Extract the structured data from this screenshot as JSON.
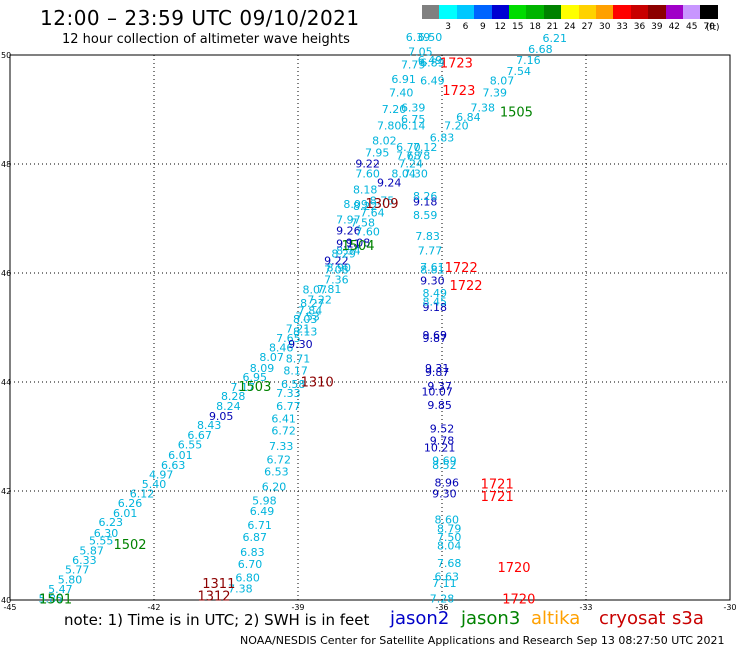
{
  "header": {
    "title": "12:00 – 23:59 UTC 09/10/2021",
    "subtitle": "12 hour collection of altimeter wave heights"
  },
  "color_scale": {
    "unit_label": "(ft)",
    "items": [
      {
        "label": "",
        "color": "#808080"
      },
      {
        "label": "3",
        "color": "#00ffff"
      },
      {
        "label": "6",
        "color": "#00c8ff"
      },
      {
        "label": "9",
        "color": "#0064ff"
      },
      {
        "label": "12",
        "color": "#0000d2"
      },
      {
        "label": "15",
        "color": "#00dc00"
      },
      {
        "label": "18",
        "color": "#00b400"
      },
      {
        "label": "21",
        "color": "#008200"
      },
      {
        "label": "24",
        "color": "#ffff00"
      },
      {
        "label": "27",
        "color": "#ffd200"
      },
      {
        "label": "30",
        "color": "#ffa000"
      },
      {
        "label": "33",
        "color": "#ff0000"
      },
      {
        "label": "36",
        "color": "#c80000"
      },
      {
        "label": "39",
        "color": "#8c0000"
      },
      {
        "label": "42",
        "color": "#a000c8"
      },
      {
        "label": "45",
        "color": "#c896ff"
      },
      {
        "label": "70",
        "color": "#000000"
      }
    ]
  },
  "footer": {
    "note": "note: 1) Time is in UTC; 2) SWH is in feet",
    "legend": [
      {
        "name": "jason2",
        "color": "#0000c8"
      },
      {
        "name": "jason3",
        "color": "#008200"
      },
      {
        "name": "altika",
        "color": "#ffa000"
      },
      {
        "name": "cryosat",
        "color": "#c80000"
      },
      {
        "name": "s3a",
        "color": "#c80000"
      }
    ],
    "credit": "NOAA/NESDIS Center for Satellite Applications and Research   Sep 13 08:27:50 UTC 2021"
  },
  "colors": {
    "light": "#00b4dc",
    "dark": "#0000b4",
    "time_red": "#ff0000",
    "time_green": "#008200",
    "time_maroon": "#8c0000"
  },
  "chart_data": {
    "type": "scatter",
    "xlim": [
      -45,
      -30
    ],
    "ylim": [
      40,
      50
    ],
    "x_ticks": [
      {
        "v": -45,
        "label": "-45"
      },
      {
        "v": -42,
        "label": "-42"
      },
      {
        "v": -39,
        "label": "-39"
      },
      {
        "v": -36,
        "label": "-36"
      },
      {
        "v": -33,
        "label": "-33"
      },
      {
        "v": -30,
        "label": "-30"
      }
    ],
    "y_ticks": [
      {
        "v": 40,
        "label": "40"
      },
      {
        "v": 42,
        "label": "42"
      },
      {
        "v": 44,
        "label": "44"
      },
      {
        "v": 46,
        "label": "46"
      },
      {
        "v": 48,
        "label": "48"
      },
      {
        "v": 50,
        "label": "50"
      }
    ],
    "grid": true,
    "wave_heights": [
      {
        "lon": -44.15,
        "lat": 40.03,
        "v": "5.85",
        "c": "light"
      },
      {
        "lon": -43.95,
        "lat": 40.2,
        "v": "5.47",
        "c": "light"
      },
      {
        "lon": -43.75,
        "lat": 40.38,
        "v": "5.80",
        "c": "light"
      },
      {
        "lon": -43.6,
        "lat": 40.56,
        "v": "5.77",
        "c": "light"
      },
      {
        "lon": -43.45,
        "lat": 40.73,
        "v": "6.33",
        "c": "light"
      },
      {
        "lon": -43.3,
        "lat": 40.91,
        "v": "5.87",
        "c": "light"
      },
      {
        "lon": -43.1,
        "lat": 41.09,
        "v": "5.55",
        "c": "light"
      },
      {
        "lon": -43.0,
        "lat": 41.23,
        "v": "6.30",
        "c": "light"
      },
      {
        "lon": -42.9,
        "lat": 41.43,
        "v": "6.23",
        "c": "light"
      },
      {
        "lon": -42.6,
        "lat": 41.6,
        "v": "6.01",
        "c": "light"
      },
      {
        "lon": -42.5,
        "lat": 41.78,
        "v": "6.26",
        "c": "light"
      },
      {
        "lon": -42.25,
        "lat": 41.95,
        "v": "6.12",
        "c": "light"
      },
      {
        "lon": -42.0,
        "lat": 42.13,
        "v": "5.40",
        "c": "light"
      },
      {
        "lon": -41.85,
        "lat": 42.3,
        "v": "4.97",
        "c": "light"
      },
      {
        "lon": -41.6,
        "lat": 42.48,
        "v": "6.63",
        "c": "light"
      },
      {
        "lon": -41.45,
        "lat": 42.66,
        "v": "6.01",
        "c": "light"
      },
      {
        "lon": -41.25,
        "lat": 42.85,
        "v": "6.55",
        "c": "light"
      },
      {
        "lon": -41.05,
        "lat": 43.03,
        "v": "6.67",
        "c": "light"
      },
      {
        "lon": -40.85,
        "lat": 43.21,
        "v": "8.43",
        "c": "light"
      },
      {
        "lon": -40.6,
        "lat": 43.38,
        "v": "9.05",
        "c": "dark"
      },
      {
        "lon": -40.45,
        "lat": 43.56,
        "v": "8.24",
        "c": "light"
      },
      {
        "lon": -40.35,
        "lat": 43.74,
        "v": "8.28",
        "c": "light"
      },
      {
        "lon": -40.15,
        "lat": 43.91,
        "v": "7.17",
        "c": "light"
      },
      {
        "lon": -39.9,
        "lat": 44.09,
        "v": "6.95",
        "c": "light"
      },
      {
        "lon": -39.75,
        "lat": 44.26,
        "v": "8.09",
        "c": "light"
      },
      {
        "lon": -39.55,
        "lat": 44.46,
        "v": "8.07",
        "c": "light"
      },
      {
        "lon": -39.35,
        "lat": 44.63,
        "v": "8.46",
        "c": "light"
      },
      {
        "lon": -39.2,
        "lat": 44.81,
        "v": "7.65",
        "c": "light"
      },
      {
        "lon": -39.0,
        "lat": 44.98,
        "v": "7.21",
        "c": "light"
      },
      {
        "lon": -38.85,
        "lat": 45.16,
        "v": "8.03",
        "c": "light"
      },
      {
        "lon": -38.75,
        "lat": 45.31,
        "v": "7.84",
        "c": "light"
      },
      {
        "lon": -38.55,
        "lat": 45.51,
        "v": "7.22",
        "c": "light"
      },
      {
        "lon": -38.35,
        "lat": 45.71,
        "v": "7.81",
        "c": "light"
      },
      {
        "lon": -38.2,
        "lat": 45.88,
        "v": "7.36",
        "c": "light"
      },
      {
        "lon": -38.2,
        "lat": 46.06,
        "v": "7.08",
        "c": "light"
      },
      {
        "lon": -38.15,
        "lat": 46.1,
        "v": "8.90",
        "c": "light"
      },
      {
        "lon": -38.2,
        "lat": 46.23,
        "v": "9.22",
        "c": "dark"
      },
      {
        "lon": -38.05,
        "lat": 46.36,
        "v": "8.29",
        "c": "light"
      },
      {
        "lon": -37.95,
        "lat": 46.41,
        "v": "8.54",
        "c": "light"
      },
      {
        "lon": -37.95,
        "lat": 46.54,
        "v": "9.11",
        "c": "dark"
      },
      {
        "lon": -37.75,
        "lat": 46.56,
        "v": "9.08",
        "c": "dark"
      },
      {
        "lon": -37.95,
        "lat": 46.78,
        "v": "9.26",
        "c": "dark"
      },
      {
        "lon": -37.55,
        "lat": 46.76,
        "v": "7.60",
        "c": "light"
      },
      {
        "lon": -37.65,
        "lat": 46.93,
        "v": "7.58",
        "c": "light"
      },
      {
        "lon": -37.95,
        "lat": 46.98,
        "v": "7.97",
        "c": "light"
      },
      {
        "lon": -37.45,
        "lat": 47.11,
        "v": "7.64",
        "c": "light"
      },
      {
        "lon": -37.8,
        "lat": 47.27,
        "v": "8.09",
        "c": "light"
      },
      {
        "lon": -37.6,
        "lat": 47.23,
        "v": "8.22",
        "c": "light"
      },
      {
        "lon": -37.25,
        "lat": 47.33,
        "v": "8.75",
        "c": "light"
      },
      {
        "lon": -37.6,
        "lat": 47.53,
        "v": "8.18",
        "c": "light"
      },
      {
        "lon": -37.1,
        "lat": 47.66,
        "v": "9.24",
        "c": "dark"
      },
      {
        "lon": -37.55,
        "lat": 47.83,
        "v": "7.60",
        "c": "light"
      },
      {
        "lon": -36.8,
        "lat": 47.83,
        "v": "8.04",
        "c": "light"
      },
      {
        "lon": -36.55,
        "lat": 47.83,
        "v": "7.30",
        "c": "light"
      },
      {
        "lon": -37.55,
        "lat": 48.01,
        "v": "9.22",
        "c": "dark"
      },
      {
        "lon": -36.65,
        "lat": 48.01,
        "v": "7.24",
        "c": "light"
      },
      {
        "lon": -37.35,
        "lat": 48.21,
        "v": "7.95",
        "c": "light"
      },
      {
        "lon": -36.7,
        "lat": 48.16,
        "v": "7.68",
        "c": "light"
      },
      {
        "lon": -36.5,
        "lat": 48.16,
        "v": "7.78",
        "c": "light"
      },
      {
        "lon": -36.7,
        "lat": 48.31,
        "v": "6.70",
        "c": "light"
      },
      {
        "lon": -36.35,
        "lat": 48.31,
        "v": "7.12",
        "c": "light"
      },
      {
        "lon": -37.2,
        "lat": 48.43,
        "v": "8.02",
        "c": "light"
      },
      {
        "lon": -36.0,
        "lat": 48.49,
        "v": "6.83",
        "c": "light"
      },
      {
        "lon": -37.1,
        "lat": 48.71,
        "v": "7.80",
        "c": "light"
      },
      {
        "lon": -36.6,
        "lat": 48.71,
        "v": "6.14",
        "c": "light"
      },
      {
        "lon": -35.7,
        "lat": 48.71,
        "v": "7.20",
        "c": "light"
      },
      {
        "lon": -36.6,
        "lat": 48.83,
        "v": "6.75",
        "c": "light"
      },
      {
        "lon": -35.45,
        "lat": 48.86,
        "v": "6.84",
        "c": "light"
      },
      {
        "lon": -37.0,
        "lat": 49.01,
        "v": "7.20",
        "c": "light"
      },
      {
        "lon": -36.6,
        "lat": 49.04,
        "v": "6.39",
        "c": "light"
      },
      {
        "lon": -35.15,
        "lat": 49.04,
        "v": "7.38",
        "c": "light"
      },
      {
        "lon": -36.85,
        "lat": 49.31,
        "v": "7.40",
        "c": "light"
      },
      {
        "lon": -34.9,
        "lat": 49.31,
        "v": "7.39",
        "c": "light"
      },
      {
        "lon": -36.8,
        "lat": 49.56,
        "v": "6.91",
        "c": "light"
      },
      {
        "lon": -36.2,
        "lat": 49.53,
        "v": "6.49",
        "c": "light"
      },
      {
        "lon": -34.75,
        "lat": 49.53,
        "v": "8.07",
        "c": "light"
      },
      {
        "lon": -34.4,
        "lat": 49.71,
        "v": "7.54",
        "c": "light"
      },
      {
        "lon": -36.6,
        "lat": 49.83,
        "v": "7.79",
        "c": "light"
      },
      {
        "lon": -36.2,
        "lat": 49.86,
        "v": "6.89",
        "c": "light"
      },
      {
        "lon": -36.25,
        "lat": 49.91,
        "v": "6.49",
        "c": "light"
      },
      {
        "lon": -34.2,
        "lat": 49.91,
        "v": "7.16",
        "c": "light"
      },
      {
        "lon": -36.45,
        "lat": 50.06,
        "v": "7.05",
        "c": "light"
      },
      {
        "lon": -33.95,
        "lat": 50.11,
        "v": "6.68",
        "c": "light"
      },
      {
        "lon": -36.25,
        "lat": 50.33,
        "v": "6.50",
        "c": "light"
      },
      {
        "lon": -36.5,
        "lat": 50.33,
        "v": "6.39",
        "c": "light"
      },
      {
        "lon": -33.65,
        "lat": 50.31,
        "v": "6.21",
        "c": "light"
      },
      {
        "lon": -40.2,
        "lat": 40.21,
        "v": "7.38",
        "c": "light"
      },
      {
        "lon": -40.05,
        "lat": 40.41,
        "v": "6.80",
        "c": "light"
      },
      {
        "lon": -40.0,
        "lat": 40.66,
        "v": "6.70",
        "c": "light"
      },
      {
        "lon": -39.95,
        "lat": 40.88,
        "v": "6.83",
        "c": "light"
      },
      {
        "lon": -39.9,
        "lat": 41.16,
        "v": "6.87",
        "c": "light"
      },
      {
        "lon": -39.8,
        "lat": 41.38,
        "v": "6.71",
        "c": "light"
      },
      {
        "lon": -39.75,
        "lat": 41.63,
        "v": "6.49",
        "c": "light"
      },
      {
        "lon": -39.7,
        "lat": 41.83,
        "v": "5.98",
        "c": "light"
      },
      {
        "lon": -39.5,
        "lat": 42.08,
        "v": "6.20",
        "c": "light"
      },
      {
        "lon": -39.45,
        "lat": 42.36,
        "v": "6.53",
        "c": "light"
      },
      {
        "lon": -39.4,
        "lat": 42.58,
        "v": "6.72",
        "c": "light"
      },
      {
        "lon": -39.35,
        "lat": 42.83,
        "v": "7.33",
        "c": "light"
      },
      {
        "lon": -39.3,
        "lat": 43.11,
        "v": "6.72",
        "c": "light"
      },
      {
        "lon": -39.3,
        "lat": 43.33,
        "v": "6.41",
        "c": "light"
      },
      {
        "lon": -39.2,
        "lat": 43.56,
        "v": "6.77",
        "c": "light"
      },
      {
        "lon": -39.2,
        "lat": 43.8,
        "v": "7.33",
        "c": "light"
      },
      {
        "lon": -39.1,
        "lat": 43.96,
        "v": "6.58",
        "c": "light"
      },
      {
        "lon": -39.05,
        "lat": 44.21,
        "v": "8.17",
        "c": "light"
      },
      {
        "lon": -39.0,
        "lat": 44.43,
        "v": "8.71",
        "c": "light"
      },
      {
        "lon": -38.95,
        "lat": 44.7,
        "v": "9.30",
        "c": "dark"
      },
      {
        "lon": -38.85,
        "lat": 44.93,
        "v": "8.13",
        "c": "light"
      },
      {
        "lon": -38.8,
        "lat": 45.2,
        "v": "7.53",
        "c": "light"
      },
      {
        "lon": -38.7,
        "lat": 45.45,
        "v": "8.27",
        "c": "light"
      },
      {
        "lon": -38.65,
        "lat": 45.7,
        "v": "8.07",
        "c": "light"
      },
      {
        "lon": -36.0,
        "lat": 40.03,
        "v": "7.28",
        "c": "light"
      },
      {
        "lon": -35.95,
        "lat": 40.31,
        "v": "7.11",
        "c": "light"
      },
      {
        "lon": -35.9,
        "lat": 40.43,
        "v": "6.63",
        "c": "light"
      },
      {
        "lon": -35.85,
        "lat": 40.68,
        "v": "7.68",
        "c": "light"
      },
      {
        "lon": -35.85,
        "lat": 41.0,
        "v": "8.04",
        "c": "light"
      },
      {
        "lon": -35.85,
        "lat": 41.16,
        "v": "7.50",
        "c": "light"
      },
      {
        "lon": -35.85,
        "lat": 41.31,
        "v": "8.79",
        "c": "light"
      },
      {
        "lon": -35.9,
        "lat": 41.48,
        "v": "8.60",
        "c": "light"
      },
      {
        "lon": -35.95,
        "lat": 41.95,
        "v": "9.30",
        "c": "dark"
      },
      {
        "lon": -35.9,
        "lat": 42.16,
        "v": "8.96",
        "c": "dark"
      },
      {
        "lon": -35.95,
        "lat": 42.48,
        "v": "8.52",
        "c": "light"
      },
      {
        "lon": -35.95,
        "lat": 42.56,
        "v": "9.69",
        "c": "light"
      },
      {
        "lon": -36.05,
        "lat": 42.8,
        "v": "10.21",
        "c": "dark"
      },
      {
        "lon": -36.0,
        "lat": 42.93,
        "v": "9.78",
        "c": "dark"
      },
      {
        "lon": -36.0,
        "lat": 43.15,
        "v": "9.52",
        "c": "dark"
      },
      {
        "lon": -36.05,
        "lat": 43.58,
        "v": "9.85",
        "c": "dark"
      },
      {
        "lon": -36.1,
        "lat": 43.83,
        "v": "10.07",
        "c": "dark"
      },
      {
        "lon": -36.05,
        "lat": 43.93,
        "v": "9.37",
        "c": "dark"
      },
      {
        "lon": -36.1,
        "lat": 44.18,
        "v": "9.87",
        "c": "dark"
      },
      {
        "lon": -36.1,
        "lat": 44.26,
        "v": "9.31",
        "c": "dark"
      },
      {
        "lon": -36.15,
        "lat": 44.81,
        "v": "9.87",
        "c": "dark"
      },
      {
        "lon": -36.15,
        "lat": 44.86,
        "v": "9.69",
        "c": "dark"
      },
      {
        "lon": -36.15,
        "lat": 45.38,
        "v": "9.18",
        "c": "dark"
      },
      {
        "lon": -36.15,
        "lat": 45.48,
        "v": "8.45",
        "c": "light"
      },
      {
        "lon": -36.15,
        "lat": 45.63,
        "v": "8.49",
        "c": "light"
      },
      {
        "lon": -36.2,
        "lat": 45.86,
        "v": "9.30",
        "c": "dark"
      },
      {
        "lon": -36.2,
        "lat": 46.06,
        "v": "8.81",
        "c": "light"
      },
      {
        "lon": -36.2,
        "lat": 46.11,
        "v": "7.61",
        "c": "light"
      },
      {
        "lon": -36.25,
        "lat": 46.41,
        "v": "7.77",
        "c": "light"
      },
      {
        "lon": -36.3,
        "lat": 46.68,
        "v": "7.83",
        "c": "light"
      },
      {
        "lon": -36.35,
        "lat": 47.06,
        "v": "8.59",
        "c": "light"
      },
      {
        "lon": -36.35,
        "lat": 47.31,
        "v": "9.18",
        "c": "dark"
      },
      {
        "lon": -36.35,
        "lat": 47.41,
        "v": "8.26",
        "c": "light"
      }
    ],
    "times": [
      {
        "lon": -44.05,
        "lat": 40.03,
        "v": "1501",
        "c": "time_green"
      },
      {
        "lon": -42.5,
        "lat": 41.03,
        "v": "1502",
        "c": "time_green"
      },
      {
        "lon": -39.9,
        "lat": 43.93,
        "v": "1503",
        "c": "time_green"
      },
      {
        "lon": -37.75,
        "lat": 46.51,
        "v": "1504",
        "c": "time_green"
      },
      {
        "lon": -34.45,
        "lat": 48.96,
        "v": "1505",
        "c": "time_green"
      },
      {
        "lon": -40.65,
        "lat": 40.31,
        "v": "1311",
        "c": "time_maroon"
      },
      {
        "lon": -40.75,
        "lat": 40.08,
        "v": "1312",
        "c": "time_maroon"
      },
      {
        "lon": -38.6,
        "lat": 44.01,
        "v": "1310",
        "c": "time_maroon"
      },
      {
        "lon": -37.25,
        "lat": 47.28,
        "v": "1309",
        "c": "time_maroon"
      },
      {
        "lon": -34.4,
        "lat": 40.03,
        "v": "1720",
        "c": "time_red"
      },
      {
        "lon": -34.5,
        "lat": 40.61,
        "v": "1720",
        "c": "time_red"
      },
      {
        "lon": -34.85,
        "lat": 41.91,
        "v": "1721",
        "c": "time_red"
      },
      {
        "lon": -34.85,
        "lat": 42.14,
        "v": "1721",
        "c": "time_red"
      },
      {
        "lon": -35.5,
        "lat": 45.78,
        "v": "1722",
        "c": "time_red"
      },
      {
        "lon": -35.6,
        "lat": 46.11,
        "v": "1722",
        "c": "time_red"
      },
      {
        "lon": -35.65,
        "lat": 49.36,
        "v": "1723",
        "c": "time_red"
      },
      {
        "lon": -35.7,
        "lat": 49.86,
        "v": "1723",
        "c": "time_red"
      }
    ]
  }
}
